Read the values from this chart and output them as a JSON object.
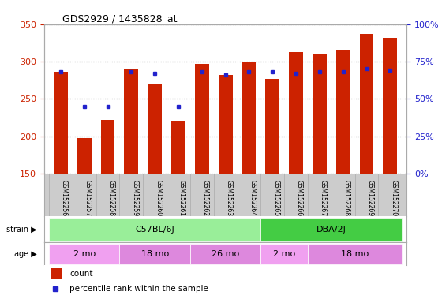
{
  "title": "GDS2929 / 1435828_at",
  "samples": [
    "GSM152256",
    "GSM152257",
    "GSM152258",
    "GSM152259",
    "GSM152260",
    "GSM152261",
    "GSM152262",
    "GSM152263",
    "GSM152264",
    "GSM152265",
    "GSM152266",
    "GSM152267",
    "GSM152268",
    "GSM152269",
    "GSM152270"
  ],
  "count_values": [
    286,
    197,
    222,
    291,
    270,
    221,
    297,
    282,
    299,
    277,
    313,
    309,
    315,
    337,
    332
  ],
  "percentile_values": [
    68,
    45,
    45,
    68,
    67,
    45,
    68,
    66,
    68,
    68,
    67,
    68,
    68,
    70,
    69
  ],
  "bar_color": "#cc2200",
  "percentile_color": "#2222cc",
  "ymin": 150,
  "ymax": 350,
  "yticks_left": [
    150,
    200,
    250,
    300,
    350
  ],
  "yticks_right": [
    0,
    25,
    50,
    75,
    100
  ],
  "ylabel_left_color": "#cc2200",
  "ylabel_right_color": "#2222cc",
  "strain_labels": [
    {
      "label": "C57BL/6J",
      "start": 0,
      "end": 8,
      "color": "#99ee99"
    },
    {
      "label": "DBA/2J",
      "start": 9,
      "end": 14,
      "color": "#44cc44"
    }
  ],
  "age_labels": [
    {
      "label": "2 mo",
      "start": 0,
      "end": 2,
      "color": "#f0a0f0"
    },
    {
      "label": "18 mo",
      "start": 3,
      "end": 5,
      "color": "#dd88dd"
    },
    {
      "label": "26 mo",
      "start": 6,
      "end": 8,
      "color": "#dd88dd"
    },
    {
      "label": "2 mo",
      "start": 9,
      "end": 10,
      "color": "#f0a0f0"
    },
    {
      "label": "18 mo",
      "start": 11,
      "end": 14,
      "color": "#dd88dd"
    }
  ],
  "legend_count_label": "count",
  "legend_pct_label": "percentile rank within the sample",
  "grid_color": "#000000",
  "bg_color": "#dddddd",
  "plot_bg": "#ffffff"
}
